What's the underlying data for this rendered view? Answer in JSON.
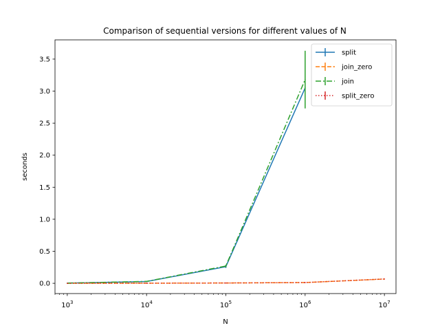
{
  "chart_data": {
    "type": "line",
    "title": "Comparison of sequential versions for different values of N",
    "xlabel": "N",
    "ylabel": "seconds",
    "xscale": "log",
    "xlim": [
      700,
      14000000
    ],
    "ylim": [
      -0.16,
      3.8
    ],
    "xticks": [
      {
        "value": 1000,
        "base": "10",
        "exp": "3"
      },
      {
        "value": 10000,
        "base": "10",
        "exp": "4"
      },
      {
        "value": 100000,
        "base": "10",
        "exp": "5"
      },
      {
        "value": 1000000,
        "base": "10",
        "exp": "6"
      },
      {
        "value": 10000000,
        "base": "10",
        "exp": "7"
      }
    ],
    "yticks": [
      {
        "value": 0.0,
        "label": "0.0"
      },
      {
        "value": 0.5,
        "label": "0.5"
      },
      {
        "value": 1.0,
        "label": "1.0"
      },
      {
        "value": 1.5,
        "label": "1.5"
      },
      {
        "value": 2.0,
        "label": "2.0"
      },
      {
        "value": 2.5,
        "label": "2.5"
      },
      {
        "value": 3.0,
        "label": "3.0"
      },
      {
        "value": 3.5,
        "label": "3.5"
      }
    ],
    "grid": false,
    "legend_position": "upper right",
    "series": [
      {
        "name": "split",
        "color": "#1f77b4",
        "dash": "",
        "x": [
          1000,
          10000,
          100000,
          1000000
        ],
        "y": [
          0.003,
          0.028,
          0.26,
          3.05
        ],
        "yerr": [
          0.0,
          0.0,
          0.02,
          0.0
        ]
      },
      {
        "name": "join_zero",
        "color": "#ff7f0e",
        "dash": "6,2.5",
        "x": [
          1000,
          10000,
          100000,
          1000000,
          10000000
        ],
        "y": [
          0.0002,
          0.002,
          0.005,
          0.012,
          0.066
        ],
        "yerr": [
          0,
          0,
          0,
          0,
          0
        ]
      },
      {
        "name": "join",
        "color": "#2ca02c",
        "dash": "8,3,2,3",
        "x": [
          1000,
          10000,
          100000,
          1000000
        ],
        "y": [
          0.003,
          0.03,
          0.27,
          3.18
        ],
        "yerr": [
          0.0,
          0.0,
          0.02,
          0.45
        ]
      },
      {
        "name": "split_zero",
        "color": "#d62728",
        "dash": "1.5,2.5",
        "x": [
          1000,
          10000,
          100000,
          1000000,
          10000000
        ],
        "y": [
          0.0002,
          0.002,
          0.005,
          0.012,
          0.068
        ],
        "yerr": [
          0,
          0,
          0,
          0,
          0
        ]
      }
    ]
  }
}
